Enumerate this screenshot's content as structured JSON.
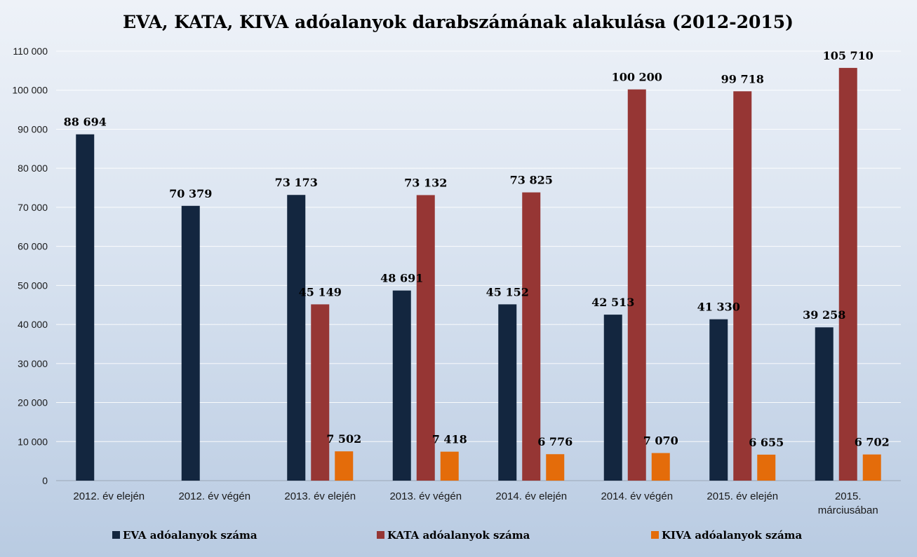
{
  "chart_data": {
    "type": "bar",
    "title": "EVA, KATA, KIVA adóalanyok darabszámának alakulása (2012-2015)",
    "xlabel": "",
    "ylabel": "",
    "ylim": [
      0,
      110000
    ],
    "yticks": [
      0,
      10000,
      20000,
      30000,
      40000,
      50000,
      60000,
      70000,
      80000,
      90000,
      100000,
      110000
    ],
    "ytick_labels": [
      "0",
      "10 000",
      "20 000",
      "30 000",
      "40 000",
      "50 000",
      "60 000",
      "70 000",
      "80 000",
      "90 000",
      "100 000",
      "110 000"
    ],
    "grid": true,
    "legend_position": "bottom",
    "categories": [
      [
        "2012. év elején"
      ],
      [
        "2012. év végén"
      ],
      [
        "2013. év elején"
      ],
      [
        "2013. év végén"
      ],
      [
        "2014. év elején"
      ],
      [
        "2014. év végén"
      ],
      [
        "2015. év elején"
      ],
      [
        "2015.",
        "márciusában"
      ]
    ],
    "series": [
      {
        "name": "EVA adóalanyok száma",
        "color": "#13263f",
        "values": [
          88694,
          70379,
          73173,
          48691,
          45152,
          42513,
          41330,
          39258
        ],
        "labels": [
          "88 694",
          "70 379",
          "73 173",
          "48 691",
          "45 152",
          "42 513",
          "41 330",
          "39 258"
        ]
      },
      {
        "name": "KATA adóalanyok száma",
        "color": "#963634",
        "values": [
          null,
          null,
          45149,
          73132,
          73825,
          100200,
          99718,
          105710
        ],
        "labels": [
          "",
          "",
          "45 149",
          "73 132",
          "73 825",
          "100 200",
          "99 718",
          "105 710"
        ]
      },
      {
        "name": "KIVA adóalanyok száma",
        "color": "#e46c0a",
        "values": [
          null,
          null,
          7502,
          7418,
          6776,
          7070,
          6655,
          6702
        ],
        "labels": [
          "",
          "",
          "7 502",
          "7 418",
          "6 776",
          "7 070",
          "6 655",
          "6 702"
        ]
      }
    ]
  }
}
